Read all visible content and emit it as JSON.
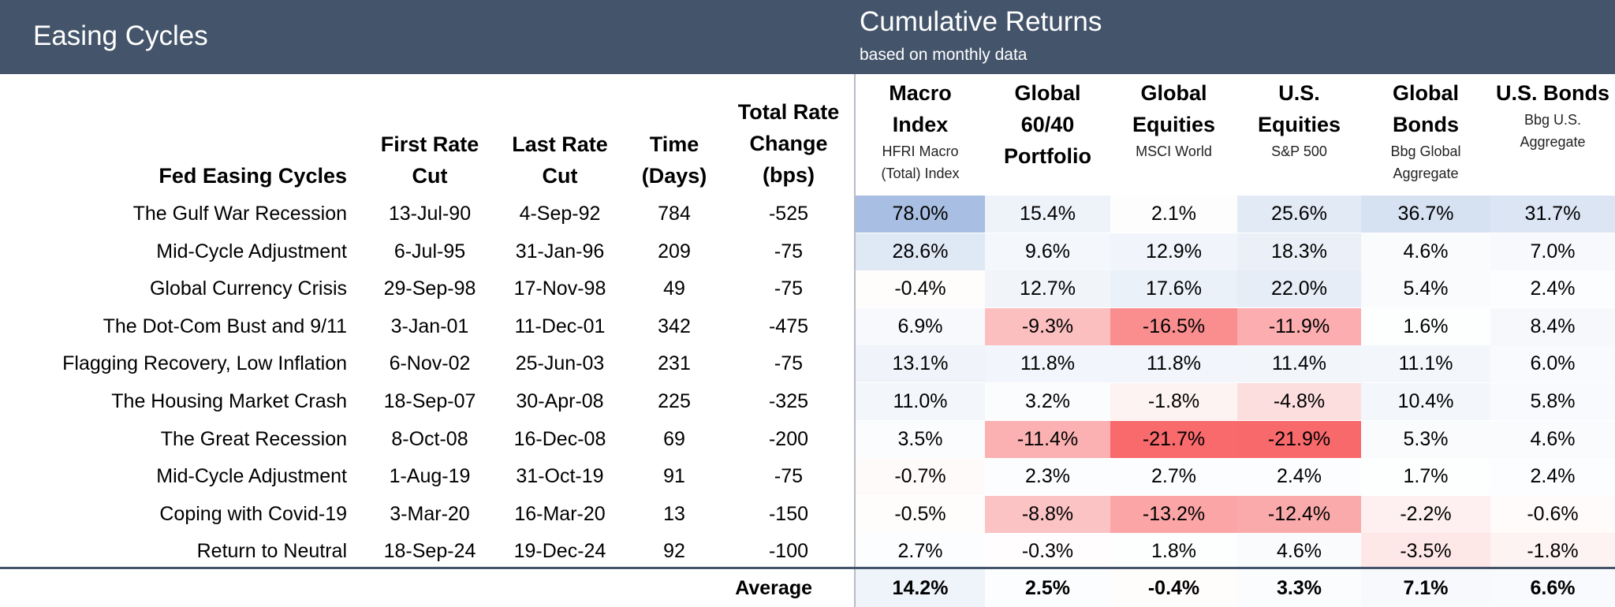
{
  "header": {
    "left_title": "Easing Cycles",
    "title": "Cumulative Returns",
    "subtitle": "based on monthly data"
  },
  "columns": {
    "cycle": "Fed Easing Cycles",
    "first_cut": [
      "First Rate",
      "Cut"
    ],
    "last_cut": [
      "Last Rate",
      "Cut"
    ],
    "time": [
      "Time",
      "(Days)"
    ],
    "rate_change": [
      "Total Rate",
      "Change",
      "(bps)"
    ]
  },
  "return_columns": [
    {
      "lines": [
        "Macro",
        "Index"
      ],
      "sub": [
        "HFRI Macro",
        "(Total) Index"
      ]
    },
    {
      "lines": [
        "Global",
        "60/40",
        "Portfolio"
      ],
      "sub": []
    },
    {
      "lines": [
        "Global",
        "Equities"
      ],
      "sub": [
        "MSCI World"
      ]
    },
    {
      "lines": [
        "U.S.",
        "Equities"
      ],
      "sub": [
        "S&P 500"
      ]
    },
    {
      "lines": [
        "Global",
        "Bonds"
      ],
      "sub": [
        "Bbg Global",
        "Aggregate"
      ]
    },
    {
      "lines": [
        "U.S. Bonds"
      ],
      "sub": [
        "Bbg U.S.",
        "Aggregate"
      ]
    }
  ],
  "rows": [
    {
      "name": "The Gulf War Recession",
      "first": "13-Jul-90",
      "last": "4-Sep-92",
      "days": "784",
      "bps": "-525",
      "returns": [
        "78.0%",
        "15.4%",
        "2.1%",
        "25.6%",
        "36.7%",
        "31.7%"
      ]
    },
    {
      "name": "Mid-Cycle Adjustment",
      "first": "6-Jul-95",
      "last": "31-Jan-96",
      "days": "209",
      "bps": "-75",
      "returns": [
        "28.6%",
        "9.6%",
        "12.9%",
        "18.3%",
        "4.6%",
        "7.0%"
      ]
    },
    {
      "name": "Global Currency Crisis",
      "first": "29-Sep-98",
      "last": "17-Nov-98",
      "days": "49",
      "bps": "-75",
      "returns": [
        "-0.4%",
        "12.7%",
        "17.6%",
        "22.0%",
        "5.4%",
        "2.4%"
      ]
    },
    {
      "name": "The Dot-Com Bust and 9/11",
      "first": "3-Jan-01",
      "last": "11-Dec-01",
      "days": "342",
      "bps": "-475",
      "returns": [
        "6.9%",
        "-9.3%",
        "-16.5%",
        "-11.9%",
        "1.6%",
        "8.4%"
      ]
    },
    {
      "name": "Flagging Recovery, Low Inflation",
      "first": "6-Nov-02",
      "last": "25-Jun-03",
      "days": "231",
      "bps": "-75",
      "returns": [
        "13.1%",
        "11.8%",
        "11.8%",
        "11.4%",
        "11.1%",
        "6.0%"
      ]
    },
    {
      "name": "The Housing Market Crash",
      "first": "18-Sep-07",
      "last": "30-Apr-08",
      "days": "225",
      "bps": "-325",
      "returns": [
        "11.0%",
        "3.2%",
        "-1.8%",
        "-4.8%",
        "10.4%",
        "5.8%"
      ]
    },
    {
      "name": "The Great Recession",
      "first": "8-Oct-08",
      "last": "16-Dec-08",
      "days": "69",
      "bps": "-200",
      "returns": [
        "3.5%",
        "-11.4%",
        "-21.7%",
        "-21.9%",
        "5.3%",
        "4.6%"
      ]
    },
    {
      "name": "Mid-Cycle Adjustment",
      "first": "1-Aug-19",
      "last": "31-Oct-19",
      "days": "91",
      "bps": "-75",
      "returns": [
        "-0.7%",
        "2.3%",
        "2.7%",
        "2.4%",
        "1.7%",
        "2.4%"
      ]
    },
    {
      "name": "Coping with Covid-19",
      "first": "3-Mar-20",
      "last": "16-Mar-20",
      "days": "13",
      "bps": "-150",
      "returns": [
        "-0.5%",
        "-8.8%",
        "-13.2%",
        "-12.4%",
        "-2.2%",
        "-0.6%"
      ]
    },
    {
      "name": "Return to Neutral",
      "first": "18-Sep-24",
      "last": "19-Dec-24",
      "days": "92",
      "bps": "-100",
      "returns": [
        "2.7%",
        "-0.3%",
        "1.8%",
        "4.6%",
        "-3.5%",
        "-1.8%"
      ]
    }
  ],
  "average": {
    "label": "Average",
    "returns": [
      "14.2%",
      "2.5%",
      "-0.4%",
      "3.3%",
      "7.1%",
      "6.6%"
    ]
  },
  "heatmap_colors": {
    "positive": "#a8bfe3",
    "negative": "#f8696b",
    "neutral": "#ffffff"
  }
}
